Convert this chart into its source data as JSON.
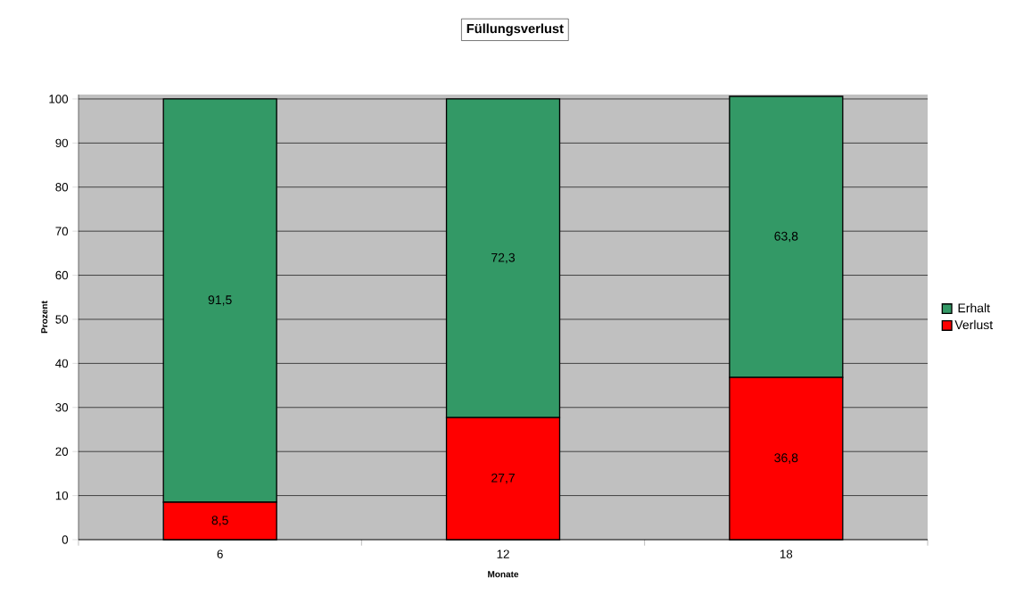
{
  "chart_data": {
    "type": "bar",
    "title": "Füllungsverlust",
    "xlabel": "Monate",
    "ylabel": "Prozent",
    "categories": [
      "6",
      "12",
      "18"
    ],
    "stacked": true,
    "series": [
      {
        "name": "Verlust",
        "color": "#ff0000",
        "values": [
          8.5,
          27.7,
          36.8
        ],
        "value_labels": [
          "8,5",
          "27,7",
          "36,8"
        ]
      },
      {
        "name": "Erhalt",
        "color": "#339966",
        "values": [
          91.5,
          72.3,
          63.8
        ],
        "value_labels": [
          "91,5",
          "72,3",
          "63,8"
        ]
      }
    ],
    "ylim": [
      0,
      101
    ],
    "yticks": [
      0,
      10,
      20,
      30,
      40,
      50,
      60,
      70,
      80,
      90,
      100
    ],
    "grid": "y",
    "legend": "right"
  }
}
